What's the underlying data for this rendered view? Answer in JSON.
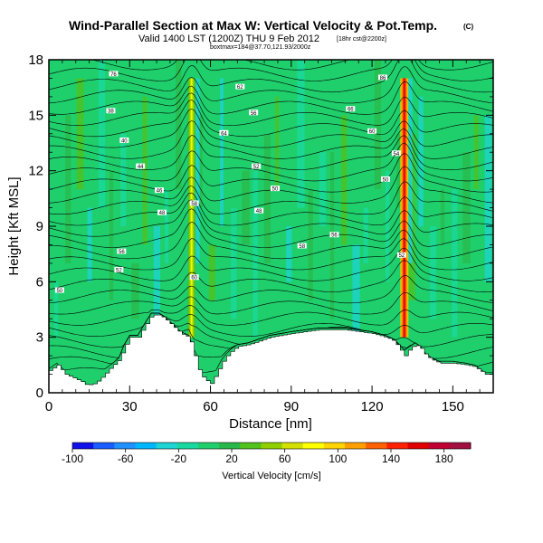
{
  "chart_data": {
    "type": "heatmap",
    "title": "Wind-Parallel Section at Max W: Vertical Velocity & Pot.Temp.",
    "title_mark": "(C)",
    "subtitle": "Valid 1400 LST (1200Z) THU 9 Feb 2012",
    "subtitle_info": "[18hr cst@2200z]",
    "subtitle_line2": "boxtmax=184@37.70,121.93/2000z",
    "xlabel": "Distance [nm]",
    "ylabel": "Height [Kft MSL]",
    "xlim": [
      0,
      165
    ],
    "ylim": [
      0,
      18
    ],
    "xticks": [
      0,
      30,
      60,
      90,
      120,
      150
    ],
    "yticks": [
      0,
      3,
      6,
      9,
      12,
      15,
      18
    ],
    "colorbar": {
      "label": "Vertical Velocity [cm/s]",
      "range": [
        -100,
        200
      ],
      "tick_values": [
        -100,
        -60,
        -20,
        20,
        60,
        100,
        140,
        180
      ],
      "tick_labels": [
        "-100",
        "-60",
        "-20",
        "20",
        "60",
        "100",
        "140",
        "180"
      ],
      "colors": [
        "#1010e8",
        "#1a5cff",
        "#1e90ff",
        "#00b7ff",
        "#1ed4d4",
        "#19d9a0",
        "#1fcf6c",
        "#2bb84a",
        "#52c21c",
        "#90d000",
        "#d4e000",
        "#ffff00",
        "#ffd400",
        "#ffa000",
        "#ff6000",
        "#ff2000",
        "#e00000",
        "#c00030",
        "#a01040"
      ]
    },
    "terrain_kft": [
      [
        0,
        1.2
      ],
      [
        3,
        1.5
      ],
      [
        6,
        1.0
      ],
      [
        9,
        0.8
      ],
      [
        12,
        0.6
      ],
      [
        14,
        0.4
      ],
      [
        17,
        0.5
      ],
      [
        20,
        0.9
      ],
      [
        23,
        1.4
      ],
      [
        26,
        1.8
      ],
      [
        28,
        2.5
      ],
      [
        30,
        3.0
      ],
      [
        33,
        3.0
      ],
      [
        35,
        3.5
      ],
      [
        38,
        4.2
      ],
      [
        41,
        4.2
      ],
      [
        43,
        4.0
      ],
      [
        46,
        3.6
      ],
      [
        49,
        3.2
      ],
      [
        52,
        3.0
      ],
      [
        54,
        2.0
      ],
      [
        56,
        1.0
      ],
      [
        58,
        0.7
      ],
      [
        60,
        0.5
      ],
      [
        62,
        1.0
      ],
      [
        64,
        1.6
      ],
      [
        66,
        2.0
      ],
      [
        68,
        2.3
      ],
      [
        70,
        2.5
      ],
      [
        74,
        2.6
      ],
      [
        78,
        2.8
      ],
      [
        82,
        3.0
      ],
      [
        86,
        3.1
      ],
      [
        90,
        3.2
      ],
      [
        95,
        3.3
      ],
      [
        100,
        3.4
      ],
      [
        105,
        3.4
      ],
      [
        110,
        3.4
      ],
      [
        115,
        3.3
      ],
      [
        120,
        3.2
      ],
      [
        125,
        3.0
      ],
      [
        128,
        2.8
      ],
      [
        130,
        2.4
      ],
      [
        132,
        2.0
      ],
      [
        134,
        2.4
      ],
      [
        136,
        2.6
      ],
      [
        138,
        2.4
      ],
      [
        140,
        2.0
      ],
      [
        142,
        1.8
      ],
      [
        145,
        1.6
      ],
      [
        150,
        1.6
      ],
      [
        155,
        1.5
      ],
      [
        158,
        1.4
      ],
      [
        160,
        1.2
      ],
      [
        162,
        1.0
      ],
      [
        165,
        1.0
      ]
    ],
    "updrafts": [
      {
        "x": 53,
        "width_nm": 3,
        "zbot": 3,
        "ztop": 17,
        "peak_w": 100
      },
      {
        "x": 132,
        "width_nm": 3,
        "zbot": 3,
        "ztop": 17,
        "peak_w": 200
      }
    ],
    "contour_labels": [
      {
        "text": "50",
        "x": 4,
        "z": 5.5
      },
      {
        "text": "52",
        "x": 26,
        "z": 6.6
      },
      {
        "text": "56",
        "x": 27,
        "z": 7.6
      },
      {
        "text": "48",
        "x": 42,
        "z": 9.7
      },
      {
        "text": "46",
        "x": 41,
        "z": 10.9
      },
      {
        "text": "44",
        "x": 34,
        "z": 12.2
      },
      {
        "text": "40",
        "x": 28,
        "z": 13.6
      },
      {
        "text": "38",
        "x": 23,
        "z": 15.2
      },
      {
        "text": "76",
        "x": 24,
        "z": 17.2
      },
      {
        "text": "60",
        "x": 54,
        "z": 6.2
      },
      {
        "text": "58",
        "x": 54,
        "z": 10.2
      },
      {
        "text": "64",
        "x": 65,
        "z": 14.0
      },
      {
        "text": "62",
        "x": 71,
        "z": 16.5
      },
      {
        "text": "56",
        "x": 76,
        "z": 15.1
      },
      {
        "text": "52",
        "x": 77,
        "z": 12.2
      },
      {
        "text": "50",
        "x": 84,
        "z": 11.0
      },
      {
        "text": "48",
        "x": 78,
        "z": 9.8
      },
      {
        "text": "58",
        "x": 94,
        "z": 7.9
      },
      {
        "text": "56",
        "x": 106,
        "z": 8.5
      },
      {
        "text": "66",
        "x": 112,
        "z": 15.3
      },
      {
        "text": "60",
        "x": 120,
        "z": 14.1
      },
      {
        "text": "86",
        "x": 124,
        "z": 17.0
      },
      {
        "text": "54",
        "x": 129,
        "z": 12.9
      },
      {
        "text": "50",
        "x": 125,
        "z": 11.5
      },
      {
        "text": "52",
        "x": 131,
        "z": 7.4
      }
    ]
  }
}
